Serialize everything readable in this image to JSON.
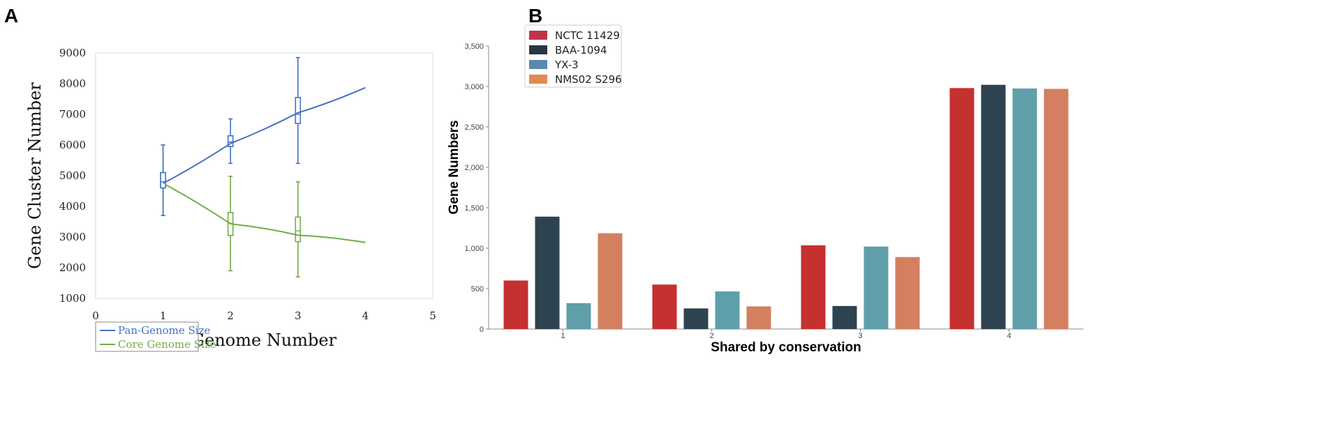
{
  "panels": {
    "a": "A",
    "b": "B"
  },
  "chart_data": [
    {
      "type": "line",
      "title": "",
      "xlabel": "Genome Number",
      "ylabel": "Gene Cluster Number",
      "xlim": [
        0,
        5
      ],
      "ylim": [
        1000,
        9000
      ],
      "xticks": [
        0,
        1,
        2,
        3,
        4,
        5
      ],
      "yticks": [
        1000,
        2000,
        3000,
        4000,
        5000,
        6000,
        7000,
        8000,
        9000
      ],
      "x": [
        1,
        2,
        3,
        4
      ],
      "series": [
        {
          "name": "Pan-Genome Size",
          "color": "#4472c4",
          "values": [
            4750,
            6050,
            7050,
            7870
          ],
          "box": [
            {
              "x": 1,
              "low": 3700,
              "q1": 4600,
              "median": 4800,
              "q3": 5100,
              "high": 6000
            },
            {
              "x": 2,
              "low": 5400,
              "q1": 5950,
              "median": 6100,
              "q3": 6300,
              "high": 6850
            },
            {
              "x": 3,
              "low": 5400,
              "q1": 6700,
              "median": 7000,
              "q3": 7550,
              "high": 8850
            }
          ]
        },
        {
          "name": "Core Genome Size",
          "color": "#70ad47",
          "values": [
            4750,
            3430,
            3060,
            2820
          ],
          "box": [
            {
              "x": 1,
              "low": 3700,
              "q1": 4600,
              "median": 4800,
              "q3": 5100,
              "high": 6000
            },
            {
              "x": 2,
              "low": 1900,
              "q1": 3050,
              "median": 3450,
              "q3": 3800,
              "high": 4980
            },
            {
              "x": 3,
              "low": 1700,
              "q1": 2850,
              "median": 3200,
              "q3": 3650,
              "high": 4800
            }
          ]
        }
      ],
      "legend": [
        "Pan-Genome Size",
        "Core Genome Size"
      ],
      "legend_position": "bottom-left",
      "grid": false
    },
    {
      "type": "bar",
      "title": "",
      "xlabel": "Shared by conservation",
      "ylabel": "Gene Numbers",
      "categories": [
        "1",
        "2",
        "3",
        "4"
      ],
      "ylim": [
        0,
        3500
      ],
      "yticks": [
        0,
        500,
        1000,
        1500,
        2000,
        2500,
        3000,
        3500
      ],
      "ytick_labels": [
        "0",
        "500",
        "1,000",
        "1,500",
        "2,000",
        "2,500",
        "3,000",
        "3,500"
      ],
      "series": [
        {
          "name": "NCTC 11429",
          "color": "#c53030",
          "legend_color": "#c0344a",
          "values": [
            600,
            550,
            1035,
            2980
          ]
        },
        {
          "name": "BAA-1094",
          "color": "#2e4350",
          "legend_color": "#283744",
          "values": [
            1390,
            255,
            285,
            3020
          ]
        },
        {
          "name": "YX-3",
          "color": "#5f9faa",
          "legend_color": "#5b88ae",
          "values": [
            320,
            465,
            1020,
            2975
          ]
        },
        {
          "name": "NMS02 S296",
          "color": "#d48060",
          "legend_color": "#e08a50",
          "values": [
            1185,
            280,
            890,
            2970
          ]
        }
      ],
      "legend_position": "top-left",
      "grid": false
    }
  ]
}
